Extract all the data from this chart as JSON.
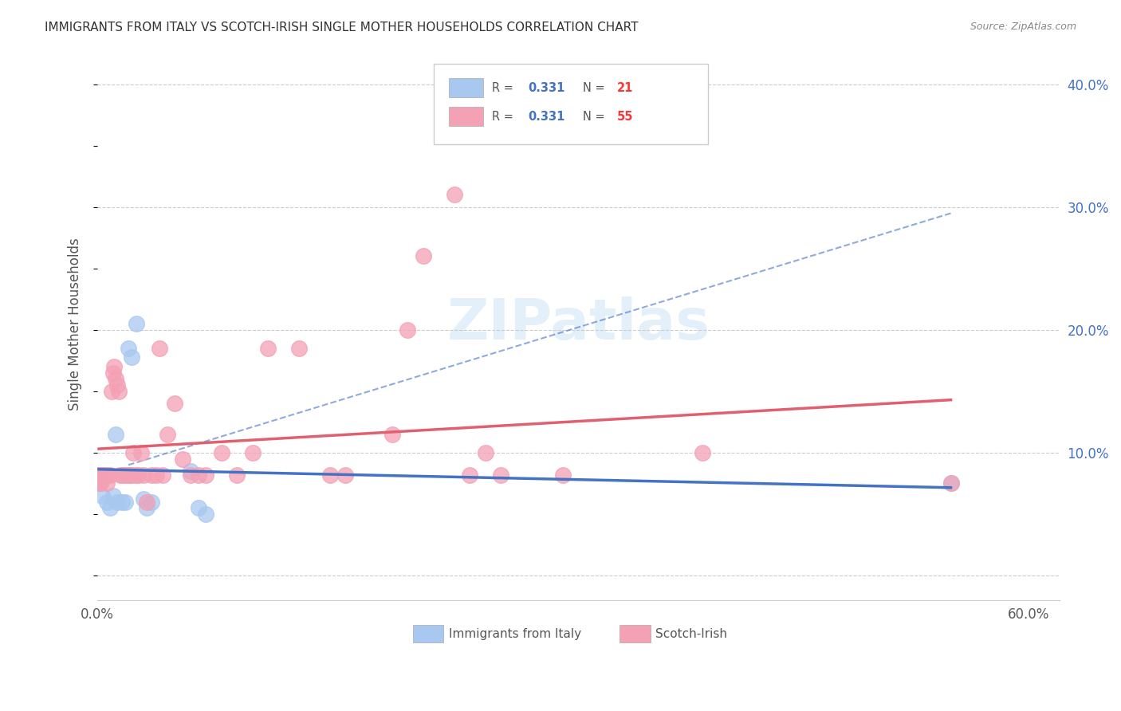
{
  "title": "IMMIGRANTS FROM ITALY VS SCOTCH-IRISH SINGLE MOTHER HOUSEHOLDS CORRELATION CHART",
  "source": "Source: ZipAtlas.com",
  "ylabel": "Single Mother Households",
  "italy_R": "0.331",
  "italy_N": "21",
  "scotch_R": "0.331",
  "scotch_N": "55",
  "xlim": [
    0.0,
    0.62
  ],
  "ylim": [
    -0.02,
    0.43
  ],
  "watermark": "ZIPatlas",
  "italy_color": "#a8c8f0",
  "scotch_color": "#f4a0b5",
  "italy_line_color": "#4472c4",
  "scotch_line_color": "#e06070",
  "dash_line_color": "#4472c4",
  "italy_scatter": [
    [
      0.001,
      0.082
    ],
    [
      0.002,
      0.075
    ],
    [
      0.003,
      0.065
    ],
    [
      0.005,
      0.082
    ],
    [
      0.006,
      0.06
    ],
    [
      0.008,
      0.055
    ],
    [
      0.01,
      0.065
    ],
    [
      0.012,
      0.115
    ],
    [
      0.013,
      0.06
    ],
    [
      0.016,
      0.06
    ],
    [
      0.018,
      0.06
    ],
    [
      0.02,
      0.185
    ],
    [
      0.022,
      0.178
    ],
    [
      0.025,
      0.205
    ],
    [
      0.03,
      0.062
    ],
    [
      0.032,
      0.055
    ],
    [
      0.035,
      0.06
    ],
    [
      0.06,
      0.085
    ],
    [
      0.065,
      0.055
    ],
    [
      0.07,
      0.05
    ],
    [
      0.55,
      0.075
    ]
  ],
  "scotch_scatter": [
    [
      0.001,
      0.082
    ],
    [
      0.001,
      0.075
    ],
    [
      0.002,
      0.082
    ],
    [
      0.002,
      0.075
    ],
    [
      0.003,
      0.082
    ],
    [
      0.004,
      0.082
    ],
    [
      0.005,
      0.082
    ],
    [
      0.006,
      0.075
    ],
    [
      0.007,
      0.082
    ],
    [
      0.008,
      0.082
    ],
    [
      0.009,
      0.15
    ],
    [
      0.01,
      0.165
    ],
    [
      0.011,
      0.17
    ],
    [
      0.012,
      0.16
    ],
    [
      0.013,
      0.155
    ],
    [
      0.014,
      0.15
    ],
    [
      0.015,
      0.082
    ],
    [
      0.016,
      0.082
    ],
    [
      0.018,
      0.082
    ],
    [
      0.02,
      0.082
    ],
    [
      0.021,
      0.082
    ],
    [
      0.022,
      0.082
    ],
    [
      0.023,
      0.1
    ],
    [
      0.025,
      0.082
    ],
    [
      0.026,
      0.082
    ],
    [
      0.028,
      0.1
    ],
    [
      0.03,
      0.082
    ],
    [
      0.032,
      0.06
    ],
    [
      0.035,
      0.082
    ],
    [
      0.038,
      0.082
    ],
    [
      0.04,
      0.185
    ],
    [
      0.042,
      0.082
    ],
    [
      0.045,
      0.115
    ],
    [
      0.05,
      0.14
    ],
    [
      0.055,
      0.095
    ],
    [
      0.06,
      0.082
    ],
    [
      0.065,
      0.082
    ],
    [
      0.07,
      0.082
    ],
    [
      0.08,
      0.1
    ],
    [
      0.09,
      0.082
    ],
    [
      0.1,
      0.1
    ],
    [
      0.11,
      0.185
    ],
    [
      0.13,
      0.185
    ],
    [
      0.15,
      0.082
    ],
    [
      0.16,
      0.082
    ],
    [
      0.19,
      0.115
    ],
    [
      0.2,
      0.2
    ],
    [
      0.21,
      0.26
    ],
    [
      0.23,
      0.31
    ],
    [
      0.24,
      0.082
    ],
    [
      0.25,
      0.1
    ],
    [
      0.26,
      0.082
    ],
    [
      0.3,
      0.082
    ],
    [
      0.39,
      0.1
    ],
    [
      0.55,
      0.075
    ]
  ],
  "dash_line": [
    [
      0.02,
      0.09
    ],
    [
      0.55,
      0.295
    ]
  ]
}
